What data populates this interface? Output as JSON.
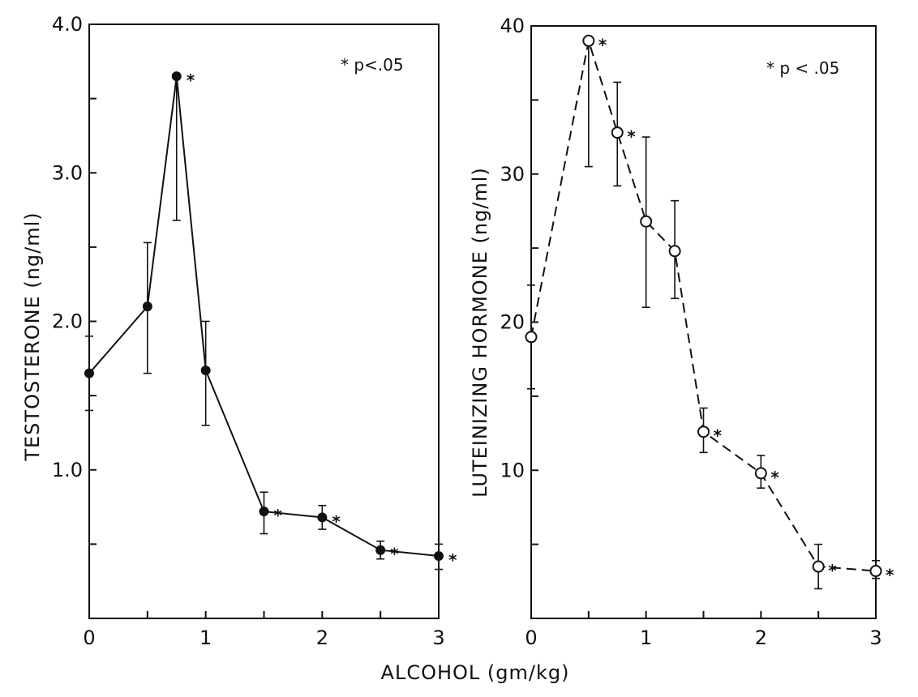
{
  "chart_data": [
    {
      "type": "line",
      "ylabel": "TESTOSTERONE (ng/ml)",
      "annotation": "* p<.05",
      "xlim": [
        0,
        3
      ],
      "ylim": [
        0,
        4.0
      ],
      "x_ticks": [
        0,
        0.5,
        1,
        1.5,
        2,
        2.5,
        3
      ],
      "x_tick_labels": [
        "0",
        "",
        "1",
        "",
        "2",
        "",
        "3"
      ],
      "y_ticks": [
        0.5,
        1.0,
        1.5,
        2.0,
        2.5,
        3.0,
        3.5,
        4.0
      ],
      "y_tick_labels": [
        "",
        "1.0",
        "",
        "2.0",
        "",
        "3.0",
        "",
        "4.0"
      ],
      "line_style": "solid",
      "marker": "filled-circle",
      "grid": false,
      "points": [
        {
          "x": 0,
          "y": 1.65,
          "err_low": 1.4,
          "err_high": 1.9,
          "significant": false
        },
        {
          "x": 0.5,
          "y": 2.1,
          "err_low": 1.65,
          "err_high": 2.53,
          "significant": false
        },
        {
          "x": 0.75,
          "y": 3.65,
          "err_low": 2.68,
          "err_high": 3.65,
          "significant": true
        },
        {
          "x": 1,
          "y": 1.67,
          "err_low": 1.3,
          "err_high": 2.0,
          "significant": false
        },
        {
          "x": 1.5,
          "y": 0.72,
          "err_low": 0.57,
          "err_high": 0.85,
          "significant": true
        },
        {
          "x": 2,
          "y": 0.68,
          "err_low": 0.6,
          "err_high": 0.76,
          "significant": true
        },
        {
          "x": 2.5,
          "y": 0.46,
          "err_low": 0.4,
          "err_high": 0.52,
          "significant": true
        },
        {
          "x": 3,
          "y": 0.42,
          "err_low": 0.33,
          "err_high": 0.5,
          "significant": true
        }
      ]
    },
    {
      "type": "line",
      "ylabel": "LUTEINIZING HORMONE (ng/ml)",
      "annotation": "* p < .05",
      "xlim": [
        0,
        3
      ],
      "ylim": [
        0,
        40
      ],
      "x_ticks": [
        0,
        0.5,
        1,
        1.5,
        2,
        2.5,
        3
      ],
      "x_tick_labels": [
        "0",
        "",
        "1",
        "",
        "2",
        "",
        "3"
      ],
      "y_ticks": [
        5,
        10,
        15,
        20,
        25,
        30,
        35,
        40
      ],
      "y_tick_labels": [
        "",
        "10",
        "",
        "20",
        "",
        "30",
        "",
        "40"
      ],
      "line_style": "dashed",
      "marker": "open-circle",
      "grid": false,
      "points": [
        {
          "x": 0,
          "y": 19,
          "err_low": 15.5,
          "err_high": 22.5,
          "significant": false
        },
        {
          "x": 0.5,
          "y": 39,
          "err_low": 30.5,
          "err_high": 39,
          "significant": true
        },
        {
          "x": 0.75,
          "y": 32.8,
          "err_low": 29.2,
          "err_high": 36.2,
          "significant": true
        },
        {
          "x": 1,
          "y": 26.8,
          "err_low": 21,
          "err_high": 32.5,
          "significant": false
        },
        {
          "x": 1.25,
          "y": 24.8,
          "err_low": 21.6,
          "err_high": 28.2,
          "significant": false
        },
        {
          "x": 1.5,
          "y": 12.6,
          "err_low": 11.2,
          "err_high": 14.2,
          "significant": true
        },
        {
          "x": 2,
          "y": 9.8,
          "err_low": 8.8,
          "err_high": 11,
          "significant": true
        },
        {
          "x": 2.5,
          "y": 3.5,
          "err_low": 2,
          "err_high": 5,
          "significant": true
        },
        {
          "x": 3,
          "y": 3.2,
          "err_low": 2.7,
          "err_high": 3.9,
          "significant": true
        }
      ]
    }
  ],
  "shared_xlabel": "ALCOHOL (gm/kg)"
}
